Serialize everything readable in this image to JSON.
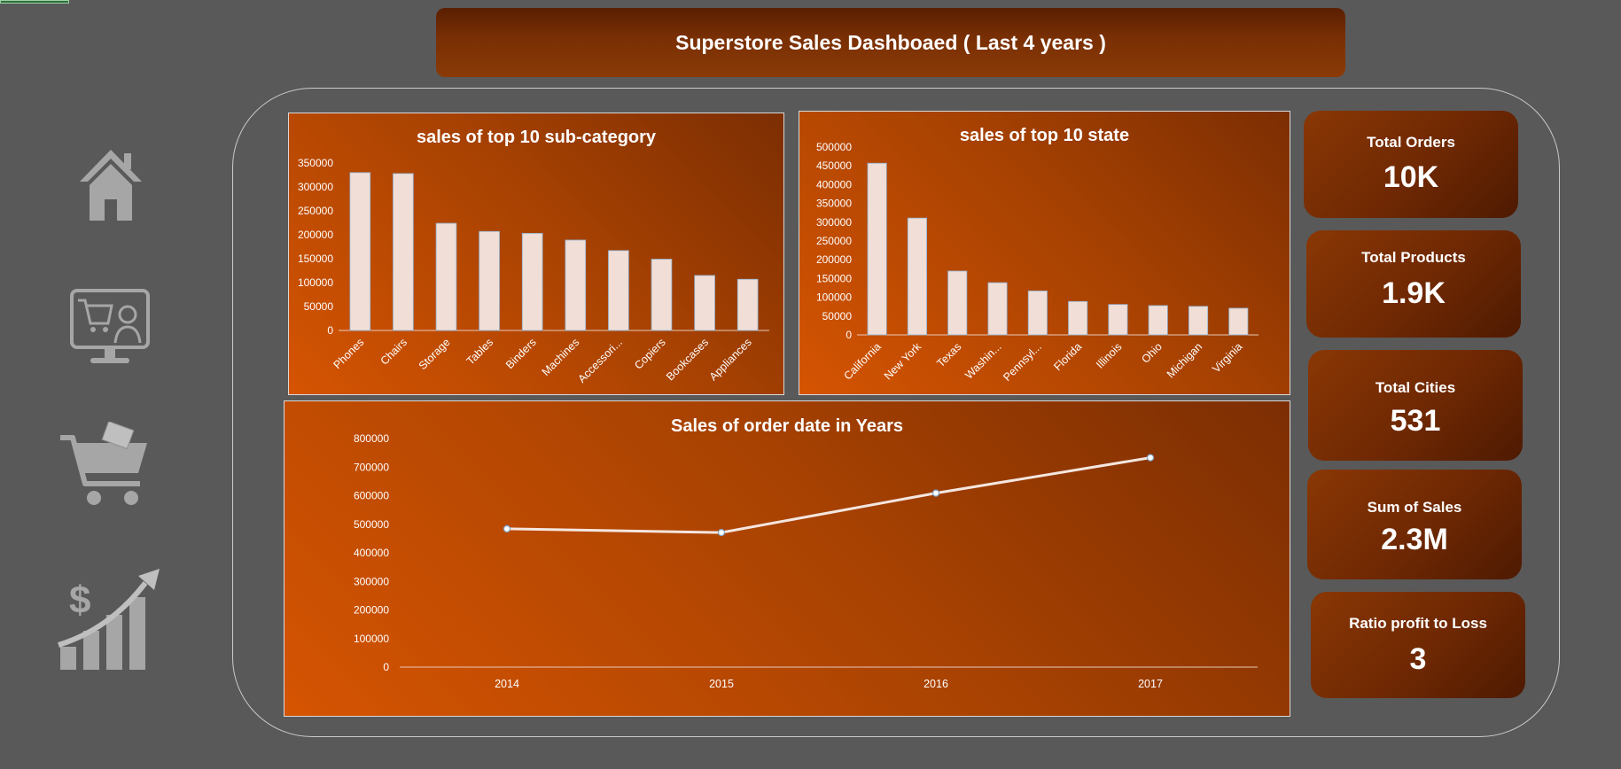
{
  "header": {
    "title": "Superstore Sales Dashboaed ( Last 4 years )"
  },
  "colors": {
    "background": "#595959",
    "panel": "#b54503",
    "bar": "#f1ded6",
    "line": "#f4e6e0",
    "kpi": "#6e2803"
  },
  "nav": {
    "icons": [
      "home-icon",
      "online-shopping-monitor-icon",
      "shopping-cart-icon",
      "sales-growth-dollar-icon"
    ]
  },
  "kpis": [
    {
      "label": "Total Orders",
      "value": "10K"
    },
    {
      "label": "Total Products",
      "value": "1.9K"
    },
    {
      "label": "Total Cities",
      "value": "531"
    },
    {
      "label": "Sum of Sales",
      "value": "2.3M"
    },
    {
      "label": "Ratio profit to Loss",
      "value": "3"
    }
  ],
  "chart_data": [
    {
      "type": "bar",
      "title": "sales of top 10 sub-category",
      "categories": [
        "Phones",
        "Chairs",
        "Storage",
        "Tables",
        "Binders",
        "Machines",
        "Accessori...",
        "Copiers",
        "Bookcases",
        "Appliances"
      ],
      "values": [
        330000,
        328000,
        224000,
        207000,
        203000,
        189000,
        167000,
        149000,
        115000,
        107000
      ],
      "ylim": [
        0,
        350000
      ],
      "yticks": [
        0,
        50000,
        100000,
        150000,
        200000,
        250000,
        300000,
        350000
      ],
      "grid": false
    },
    {
      "type": "bar",
      "title": "sales of top 10 state",
      "categories": [
        "California",
        "New York",
        "Texas",
        "Washin...",
        "Pennsyl...",
        "Florida",
        "Illinois",
        "Ohio",
        "Michigan",
        "Virginia"
      ],
      "values": [
        457000,
        311000,
        170000,
        139000,
        117000,
        89000,
        81000,
        78000,
        76000,
        71000
      ],
      "ylim": [
        0,
        500000
      ],
      "yticks": [
        0,
        50000,
        100000,
        150000,
        200000,
        250000,
        300000,
        350000,
        400000,
        450000,
        500000
      ],
      "grid": false
    },
    {
      "type": "line",
      "title": "Sales of order date in Years",
      "x": [
        "2014",
        "2015",
        "2016",
        "2017"
      ],
      "values": [
        484000,
        471000,
        609000,
        733000
      ],
      "ylim": [
        0,
        800000
      ],
      "yticks": [
        0,
        100000,
        200000,
        300000,
        400000,
        500000,
        600000,
        700000,
        800000
      ],
      "grid": false
    }
  ]
}
